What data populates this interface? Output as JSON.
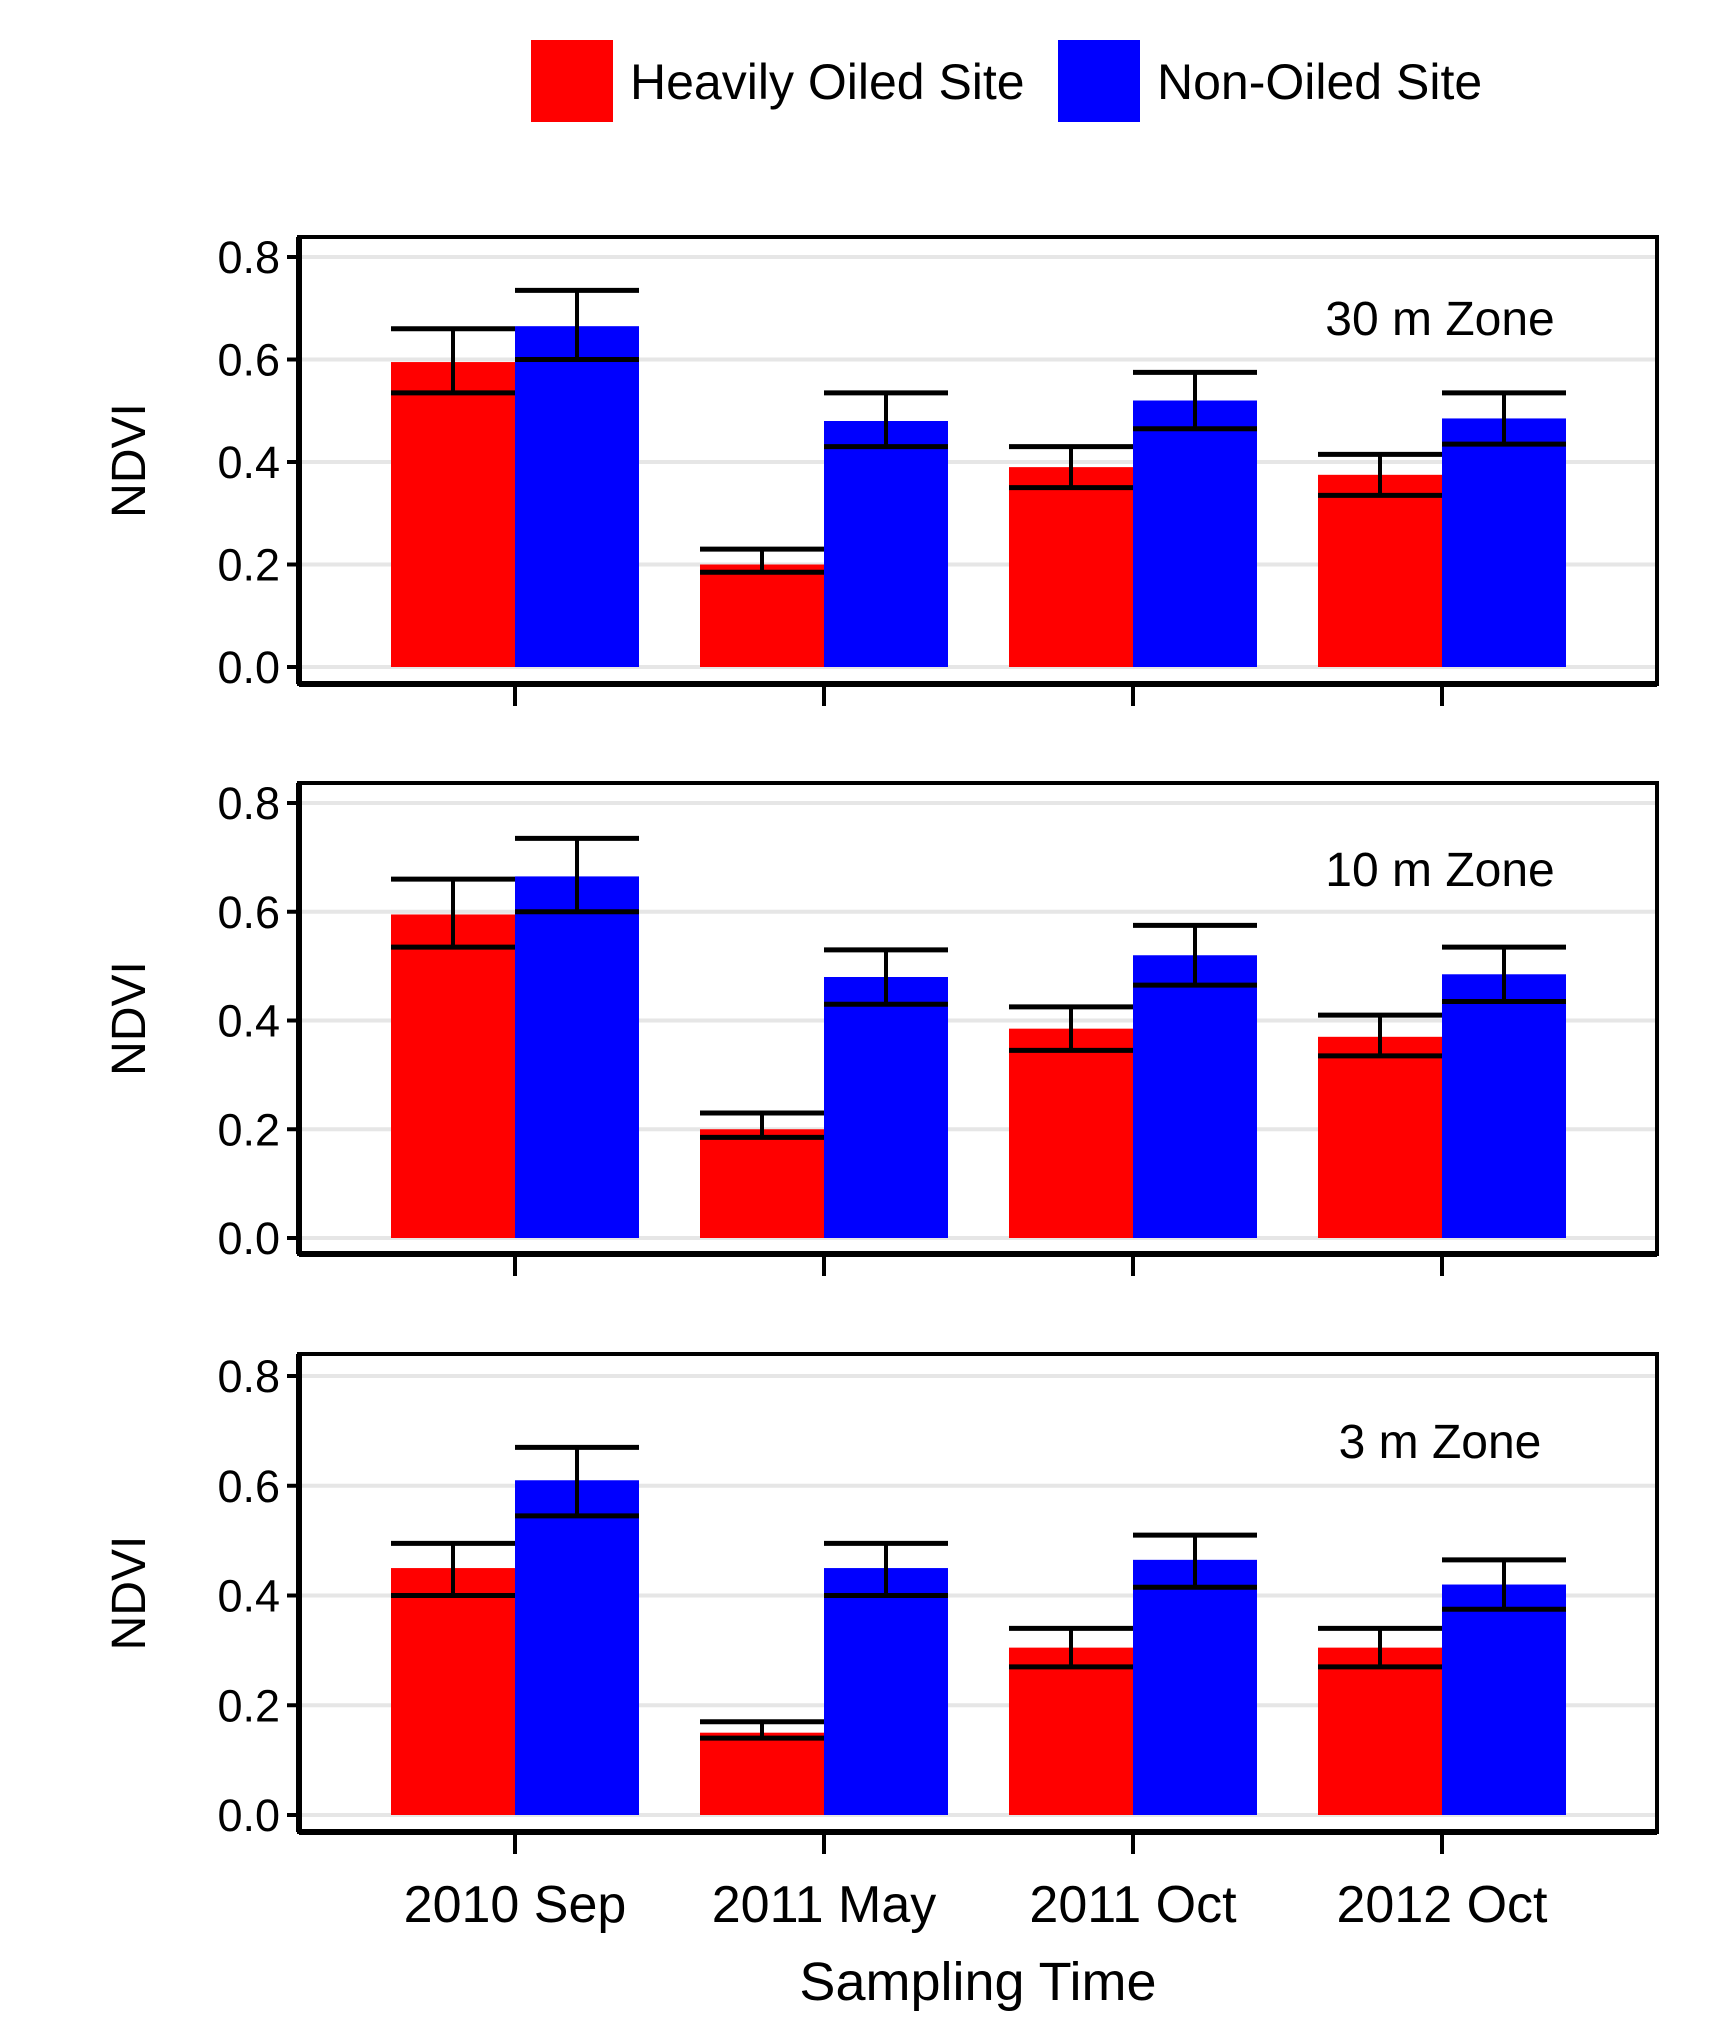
{
  "chart_data": {
    "type": "bar",
    "legend": {
      "position": "top-center",
      "entries": [
        {
          "name": "Heavily Oiled Site",
          "color": "#ff0000"
        },
        {
          "name": "Non-Oiled Site",
          "color": "#0000ff"
        }
      ]
    },
    "categories": [
      "2010 Sep",
      "2011 May",
      "2011 Oct",
      "2012 Oct"
    ],
    "xlabel": "Sampling Time",
    "ylabel": "NDVI",
    "ylim": [
      0,
      0.8
    ],
    "yticks": [
      "0.0",
      "0.2",
      "0.4",
      "0.6",
      "0.8"
    ],
    "grid": true,
    "panels": [
      {
        "label": "30 m Zone",
        "series": [
          {
            "name": "Heavily Oiled Site",
            "values": [
              0.595,
              0.2,
              0.39,
              0.375
            ],
            "error_low": [
              0.535,
              0.185,
              0.35,
              0.335
            ],
            "error_high": [
              0.66,
              0.23,
              0.43,
              0.415
            ]
          },
          {
            "name": "Non-Oiled Site",
            "values": [
              0.665,
              0.48,
              0.52,
              0.485
            ],
            "error_low": [
              0.6,
              0.43,
              0.465,
              0.435
            ],
            "error_high": [
              0.735,
              0.535,
              0.575,
              0.535
            ]
          }
        ]
      },
      {
        "label": "10 m Zone",
        "series": [
          {
            "name": "Heavily Oiled Site",
            "values": [
              0.595,
              0.2,
              0.385,
              0.37
            ],
            "error_low": [
              0.535,
              0.185,
              0.345,
              0.335
            ],
            "error_high": [
              0.66,
              0.23,
              0.425,
              0.41
            ]
          },
          {
            "name": "Non-Oiled Site",
            "values": [
              0.665,
              0.48,
              0.52,
              0.485
            ],
            "error_low": [
              0.6,
              0.43,
              0.465,
              0.435
            ],
            "error_high": [
              0.735,
              0.53,
              0.575,
              0.535
            ]
          }
        ]
      },
      {
        "label": "3 m Zone",
        "series": [
          {
            "name": "Heavily Oiled Site",
            "values": [
              0.45,
              0.15,
              0.305,
              0.305
            ],
            "error_low": [
              0.4,
              0.14,
              0.27,
              0.27
            ],
            "error_high": [
              0.495,
              0.17,
              0.34,
              0.34
            ]
          },
          {
            "name": "Non-Oiled Site",
            "values": [
              0.61,
              0.45,
              0.465,
              0.42
            ],
            "error_low": [
              0.545,
              0.4,
              0.415,
              0.375
            ],
            "error_high": [
              0.67,
              0.495,
              0.51,
              0.465
            ]
          }
        ]
      }
    ]
  }
}
